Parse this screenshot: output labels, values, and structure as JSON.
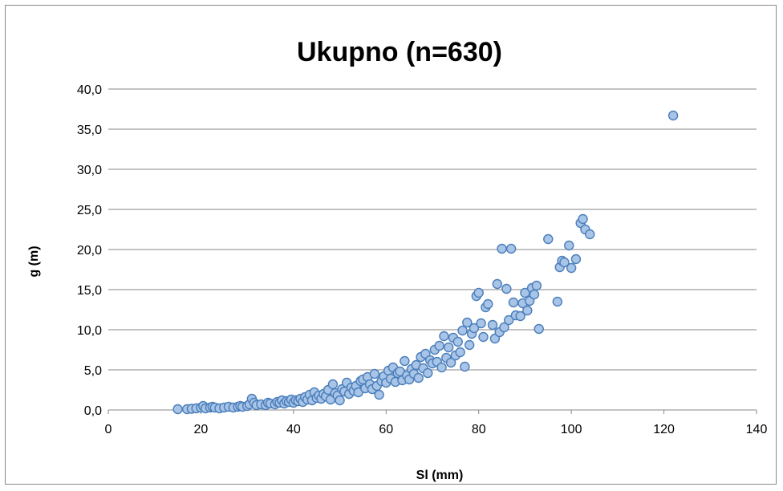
{
  "chart_data": {
    "type": "scatter",
    "title": "Ukupno (n=630)",
    "xlabel": "Sl (mm)",
    "ylabel": "g (m)",
    "xlim": [
      0,
      140
    ],
    "ylim": [
      0,
      40
    ],
    "x_ticks": [
      "0",
      "20",
      "40",
      "60",
      "80",
      "100",
      "120",
      "140"
    ],
    "y_ticks": [
      "0,0",
      "5,0",
      "10,0",
      "15,0",
      "20,0",
      "25,0",
      "30,0",
      "35,0",
      "40,0"
    ],
    "grid": "horizontal",
    "legend": "none",
    "marker_fill": "#a8c4e6",
    "marker_edge": "#4a7ebb",
    "series": [
      {
        "points": [
          [
            15,
            0.1
          ],
          [
            17,
            0.1
          ],
          [
            18,
            0.15
          ],
          [
            19,
            0.2
          ],
          [
            20,
            0.3
          ],
          [
            20.5,
            0.5
          ],
          [
            21,
            0.2
          ],
          [
            22,
            0.3
          ],
          [
            22.5,
            0.4
          ],
          [
            23,
            0.3
          ],
          [
            24,
            0.2
          ],
          [
            25,
            0.3
          ],
          [
            26,
            0.4
          ],
          [
            27,
            0.3
          ],
          [
            28,
            0.4
          ],
          [
            28.5,
            0.5
          ],
          [
            29,
            0.4
          ],
          [
            30,
            0.5
          ],
          [
            30.5,
            0.7
          ],
          [
            31,
            1.4
          ],
          [
            31.5,
            0.9
          ],
          [
            32,
            0.6
          ],
          [
            33,
            0.7
          ],
          [
            34,
            0.6
          ],
          [
            34.5,
            0.9
          ],
          [
            35,
            0.8
          ],
          [
            36,
            0.7
          ],
          [
            36.5,
            1.0
          ],
          [
            37,
            0.9
          ],
          [
            37.5,
            1.2
          ],
          [
            38,
            0.8
          ],
          [
            38.5,
            1.1
          ],
          [
            39,
            1.0
          ],
          [
            39.5,
            1.3
          ],
          [
            40,
            0.9
          ],
          [
            40.5,
            1.2
          ],
          [
            41,
            1.1
          ],
          [
            41.5,
            1.4
          ],
          [
            42,
            1.0
          ],
          [
            42.5,
            1.6
          ],
          [
            43,
            1.3
          ],
          [
            43.5,
            1.9
          ],
          [
            44,
            1.2
          ],
          [
            44.5,
            2.2
          ],
          [
            45,
            1.5
          ],
          [
            45.5,
            1.8
          ],
          [
            46,
            1.4
          ],
          [
            46.5,
            2.0
          ],
          [
            47,
            1.7
          ],
          [
            47.5,
            2.5
          ],
          [
            48,
            1.3
          ],
          [
            48.5,
            3.2
          ],
          [
            49,
            2.1
          ],
          [
            49.5,
            1.8
          ],
          [
            50,
            1.2
          ],
          [
            50.5,
            2.6
          ],
          [
            51,
            2.3
          ],
          [
            51.5,
            3.4
          ],
          [
            52,
            2.0
          ],
          [
            52.5,
            2.8
          ],
          [
            53,
            2.4
          ],
          [
            53.5,
            3.0
          ],
          [
            54,
            2.2
          ],
          [
            54.5,
            3.6
          ],
          [
            55,
            3.8
          ],
          [
            55.5,
            2.7
          ],
          [
            56,
            4.1
          ],
          [
            56.5,
            3.2
          ],
          [
            57,
            2.6
          ],
          [
            57.5,
            4.5
          ],
          [
            58,
            3.0
          ],
          [
            58.5,
            1.9
          ],
          [
            59,
            3.6
          ],
          [
            59.5,
            4.2
          ],
          [
            60,
            3.4
          ],
          [
            60.5,
            4.9
          ],
          [
            61,
            3.9
          ],
          [
            61.5,
            5.3
          ],
          [
            62,
            3.5
          ],
          [
            62.5,
            4.6
          ],
          [
            63,
            4.8
          ],
          [
            63.5,
            3.7
          ],
          [
            64,
            6.1
          ],
          [
            64.5,
            4.3
          ],
          [
            65,
            3.8
          ],
          [
            65.5,
            5.1
          ],
          [
            66,
            4.5
          ],
          [
            66.5,
            5.6
          ],
          [
            67,
            4.0
          ],
          [
            67.5,
            6.6
          ],
          [
            68,
            5.2
          ],
          [
            68.5,
            7.0
          ],
          [
            69,
            4.6
          ],
          [
            69.5,
            6.2
          ],
          [
            70,
            5.8
          ],
          [
            70.5,
            7.5
          ],
          [
            71,
            6.0
          ],
          [
            71.5,
            8.0
          ],
          [
            72,
            5.3
          ],
          [
            72.5,
            9.2
          ],
          [
            73,
            6.5
          ],
          [
            73.5,
            7.8
          ],
          [
            74,
            5.9
          ],
          [
            74.5,
            9.0
          ],
          [
            75,
            6.8
          ],
          [
            75.5,
            8.5
          ],
          [
            76,
            7.2
          ],
          [
            76.5,
            9.9
          ],
          [
            77,
            5.4
          ],
          [
            77.5,
            10.9
          ],
          [
            78,
            8.1
          ],
          [
            78.5,
            9.5
          ],
          [
            79,
            10.2
          ],
          [
            79.5,
            14.2
          ],
          [
            80,
            14.6
          ],
          [
            80.5,
            10.8
          ],
          [
            81,
            9.1
          ],
          [
            81.5,
            12.8
          ],
          [
            82,
            13.2
          ],
          [
            83,
            10.6
          ],
          [
            83.5,
            8.9
          ],
          [
            84,
            15.7
          ],
          [
            84.5,
            9.7
          ],
          [
            85,
            20.1
          ],
          [
            85.5,
            10.3
          ],
          [
            86,
            15.1
          ],
          [
            86.5,
            11.2
          ],
          [
            87,
            20.1
          ],
          [
            87.5,
            13.4
          ],
          [
            88,
            11.8
          ],
          [
            89,
            11.7
          ],
          [
            89.5,
            13.3
          ],
          [
            90,
            14.6
          ],
          [
            90.5,
            12.4
          ],
          [
            91,
            13.6
          ],
          [
            91.5,
            15.2
          ],
          [
            92,
            14.4
          ],
          [
            92.5,
            15.5
          ],
          [
            93,
            10.1
          ],
          [
            95,
            21.3
          ],
          [
            97,
            13.5
          ],
          [
            97.5,
            17.8
          ],
          [
            98,
            18.6
          ],
          [
            98.5,
            18.4
          ],
          [
            99.5,
            20.5
          ],
          [
            100,
            17.7
          ],
          [
            101,
            18.8
          ],
          [
            102,
            23.3
          ],
          [
            102.5,
            23.8
          ],
          [
            103,
            22.5
          ],
          [
            104,
            21.9
          ],
          [
            122,
            36.7
          ]
        ]
      }
    ]
  }
}
